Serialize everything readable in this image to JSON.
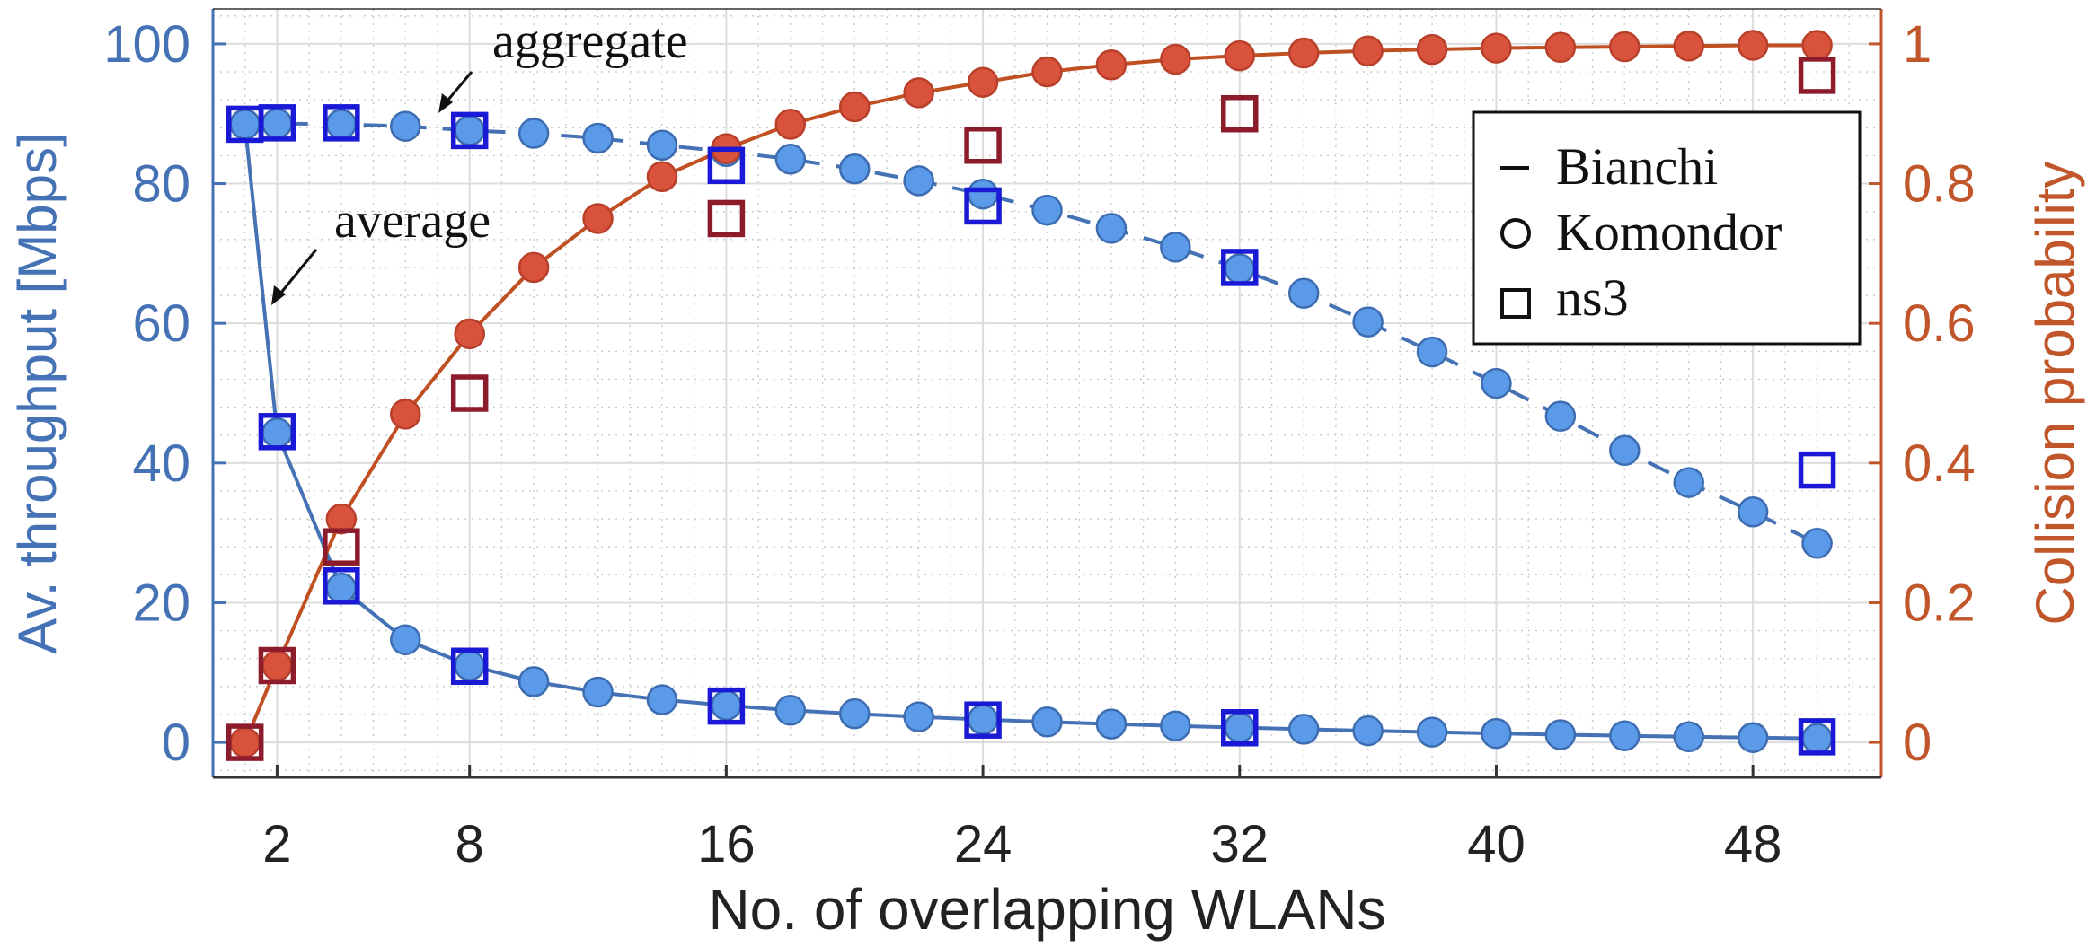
{
  "chart_data": {
    "type": "line",
    "xlabel": "No. of overlapping WLANs",
    "ylabel": "Av. throughput [Mbps]",
    "y2label": "Collision probability",
    "xlim": [
      0,
      52
    ],
    "ylim": [
      -5,
      105
    ],
    "y2lim": [
      -0.05,
      1.05
    ],
    "xticks": [
      2,
      8,
      16,
      24,
      32,
      40,
      48
    ],
    "yticks": [
      0,
      20,
      40,
      60,
      80,
      100
    ],
    "y2ticks": [
      0,
      0.2,
      0.4,
      0.6,
      0.8,
      1
    ],
    "y2ticklabels": [
      "0",
      "0.2",
      "0.4",
      "0.6",
      "0.8",
      "1"
    ],
    "grid": true,
    "legend_position": "top-right",
    "legend": [
      {
        "label": "Bianchi",
        "marker": "line"
      },
      {
        "label": "Komondor",
        "marker": "circle"
      },
      {
        "label": "ns3",
        "marker": "square"
      }
    ],
    "annotations": [
      {
        "text": "aggregate"
      },
      {
        "text": "average"
      }
    ],
    "colors": {
      "throughput_line": "#4472b5",
      "throughput_marker": "#5b9ae8",
      "throughput_marker_edge": "#3d6db0",
      "ns3_throughput": "#1a1ad6",
      "collision_line": "#c04f22",
      "collision_marker": "#d9533c",
      "ns3_collision": "#8c1c2c",
      "left_axis": "#4472b5",
      "right_axis": "#c0562a"
    },
    "series": [
      {
        "name": "aggregate",
        "role": "bianchi_komondor_aggregate",
        "x": [
          1,
          2,
          4,
          6,
          8,
          10,
          12,
          14,
          16,
          18,
          20,
          22,
          24,
          26,
          28,
          30,
          32,
          34,
          36,
          38,
          40,
          42,
          44,
          46,
          48,
          50
        ],
        "y": [
          88.5,
          88.6,
          88.5,
          88.2,
          87.6,
          87.2,
          86.5,
          85.5,
          84.6,
          83.5,
          82.1,
          80.4,
          78.5,
          76.2,
          73.6,
          70.9,
          67.8,
          64.3,
          60.2,
          55.9,
          51.4,
          46.7,
          41.8,
          37.2,
          33.0,
          28.5
        ]
      },
      {
        "name": "average",
        "role": "bianchi_komondor_average",
        "x": [
          1,
          2,
          4,
          6,
          8,
          10,
          12,
          14,
          16,
          18,
          20,
          22,
          24,
          26,
          28,
          30,
          32,
          34,
          36,
          38,
          40,
          42,
          44,
          46,
          48,
          50
        ],
        "y": [
          88.5,
          44.3,
          22.1,
          14.7,
          11.0,
          8.7,
          7.2,
          6.1,
          5.3,
          4.6,
          4.1,
          3.65,
          3.27,
          2.93,
          2.63,
          2.36,
          2.12,
          1.89,
          1.67,
          1.47,
          1.28,
          1.11,
          0.95,
          0.81,
          0.69,
          0.57
        ]
      },
      {
        "role": "collision_probability",
        "x": [
          1,
          2,
          4,
          6,
          8,
          10,
          12,
          14,
          16,
          18,
          20,
          22,
          24,
          26,
          28,
          30,
          32,
          34,
          36,
          38,
          40,
          42,
          44,
          46,
          48,
          50
        ],
        "y": [
          0,
          0.11,
          0.32,
          0.47,
          0.585,
          0.68,
          0.75,
          0.81,
          0.85,
          0.885,
          0.91,
          0.93,
          0.945,
          0.96,
          0.97,
          0.978,
          0.983,
          0.987,
          0.99,
          0.992,
          0.994,
          0.995,
          0.996,
          0.997,
          0.998,
          0.998
        ]
      },
      {
        "role": "ns3_aggregate",
        "x": [
          1,
          2,
          4,
          8,
          16,
          24,
          32,
          50
        ],
        "y": [
          88.5,
          88.7,
          88.7,
          87.6,
          82.6,
          76.8,
          68.0,
          39.0
        ]
      },
      {
        "role": "ns3_average",
        "x": [
          2,
          4,
          8,
          16,
          24,
          32,
          50
        ],
        "y": [
          44.5,
          22.4,
          10.9,
          5.2,
          3.2,
          2.1,
          0.8
        ]
      },
      {
        "role": "ns3_collision",
        "x": [
          1,
          2,
          4,
          8,
          16,
          24,
          32,
          50
        ],
        "y": [
          0,
          0.11,
          0.28,
          0.5,
          0.75,
          0.855,
          0.9,
          0.955
        ]
      }
    ]
  }
}
